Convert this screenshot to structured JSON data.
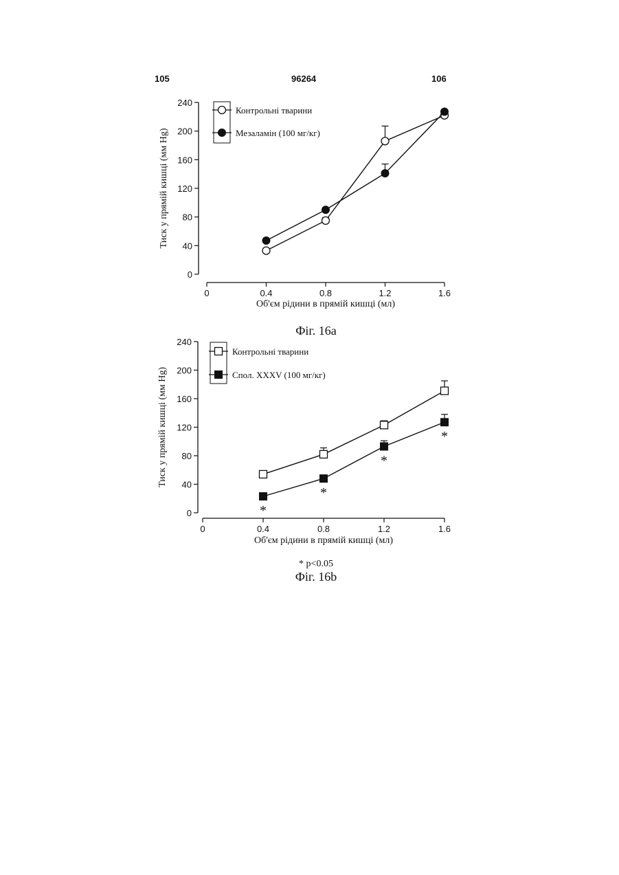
{
  "header": {
    "left": "105",
    "center": "96264",
    "right": "106"
  },
  "colors": {
    "ink": "#111111",
    "background": "#ffffff"
  },
  "figures": [
    {
      "caption": "Фіг. 16а"
    },
    {
      "caption": "Фіг. 16b",
      "footnote": "* p<0.05"
    }
  ],
  "chart_data": [
    {
      "type": "line",
      "xlabel": "Об'єм рідини в прямій кишці (мл)",
      "ylabel": "Тиск у прямій кишці (мм Hg)",
      "xlim": [
        0,
        1.6
      ],
      "ylim": [
        0,
        240
      ],
      "xticks": [
        "0",
        "0.4",
        "0.8",
        "1.2",
        "1.6"
      ],
      "yticks": [
        "0",
        "40",
        "80",
        "120",
        "160",
        "200",
        "240"
      ],
      "legend_position": "top-left",
      "x": [
        0.4,
        0.8,
        1.2,
        1.6
      ],
      "series": [
        {
          "name": "Контрольні тварини",
          "marker": "open-circle",
          "values": [
            33,
            75,
            186,
            222
          ],
          "err": [
            3,
            4,
            21,
            2
          ]
        },
        {
          "name": "Мезаламін (100 мг/кг)",
          "marker": "filled-circle",
          "values": [
            47,
            90,
            141,
            227
          ],
          "err": [
            2,
            3,
            13,
            2
          ]
        }
      ]
    },
    {
      "type": "line",
      "xlabel": "Об'єм рідини в прямій кишці (мл)",
      "ylabel": "Тиск у прямій кишці (мм Hg)",
      "xlim": [
        0,
        1.6
      ],
      "ylim": [
        0,
        240
      ],
      "xticks": [
        "0",
        "0.4",
        "0.8",
        "1.2",
        "1.6"
      ],
      "yticks": [
        "0",
        "40",
        "80",
        "120",
        "160",
        "200",
        "240"
      ],
      "legend_position": "top-left",
      "x": [
        0.4,
        0.8,
        1.2,
        1.6
      ],
      "series": [
        {
          "name": "Контрольні тварини",
          "marker": "open-square",
          "values": [
            54,
            82,
            123,
            171
          ],
          "err": [
            2,
            9,
            6,
            14
          ]
        },
        {
          "name": "Спол. XXXV (100 мг/кг)",
          "marker": "filled-square",
          "values": [
            23,
            48,
            93,
            127
          ],
          "err": [
            2,
            4,
            8,
            11
          ]
        }
      ],
      "annotations": [
        {
          "text": "*",
          "x": 0.4
        },
        {
          "text": "*",
          "x": 0.8
        },
        {
          "text": "*",
          "x": 1.2
        },
        {
          "text": "*",
          "x": 1.6
        }
      ]
    }
  ]
}
